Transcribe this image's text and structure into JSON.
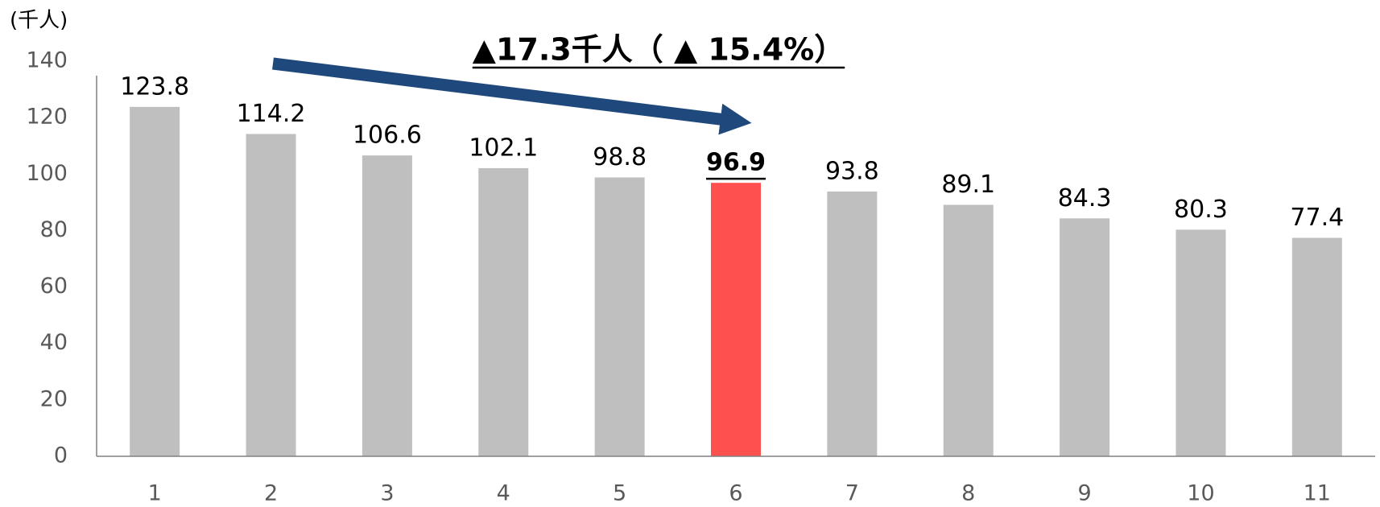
{
  "chart_data": {
    "type": "bar",
    "unit_label": "(千人)",
    "annotation": "▲17.3千人（ ▲ 15.4%）",
    "categories": [
      "1",
      "2",
      "3",
      "4",
      "5",
      "6",
      "7",
      "8",
      "9",
      "10",
      "11"
    ],
    "values": [
      123.8,
      114.2,
      106.6,
      102.1,
      98.8,
      96.9,
      93.8,
      89.1,
      84.3,
      80.3,
      77.4
    ],
    "colors": [
      "#bfbfbf",
      "#bfbfbf",
      "#bfbfbf",
      "#bfbfbf",
      "#bfbfbf",
      "#ff5050",
      "#bfbfbf",
      "#bfbfbf",
      "#bfbfbf",
      "#bfbfbf",
      "#bfbfbf"
    ],
    "ylim": [
      0,
      140
    ],
    "yticks": [
      0,
      20,
      40,
      60,
      80,
      100,
      120,
      140
    ],
    "grid": false
  }
}
